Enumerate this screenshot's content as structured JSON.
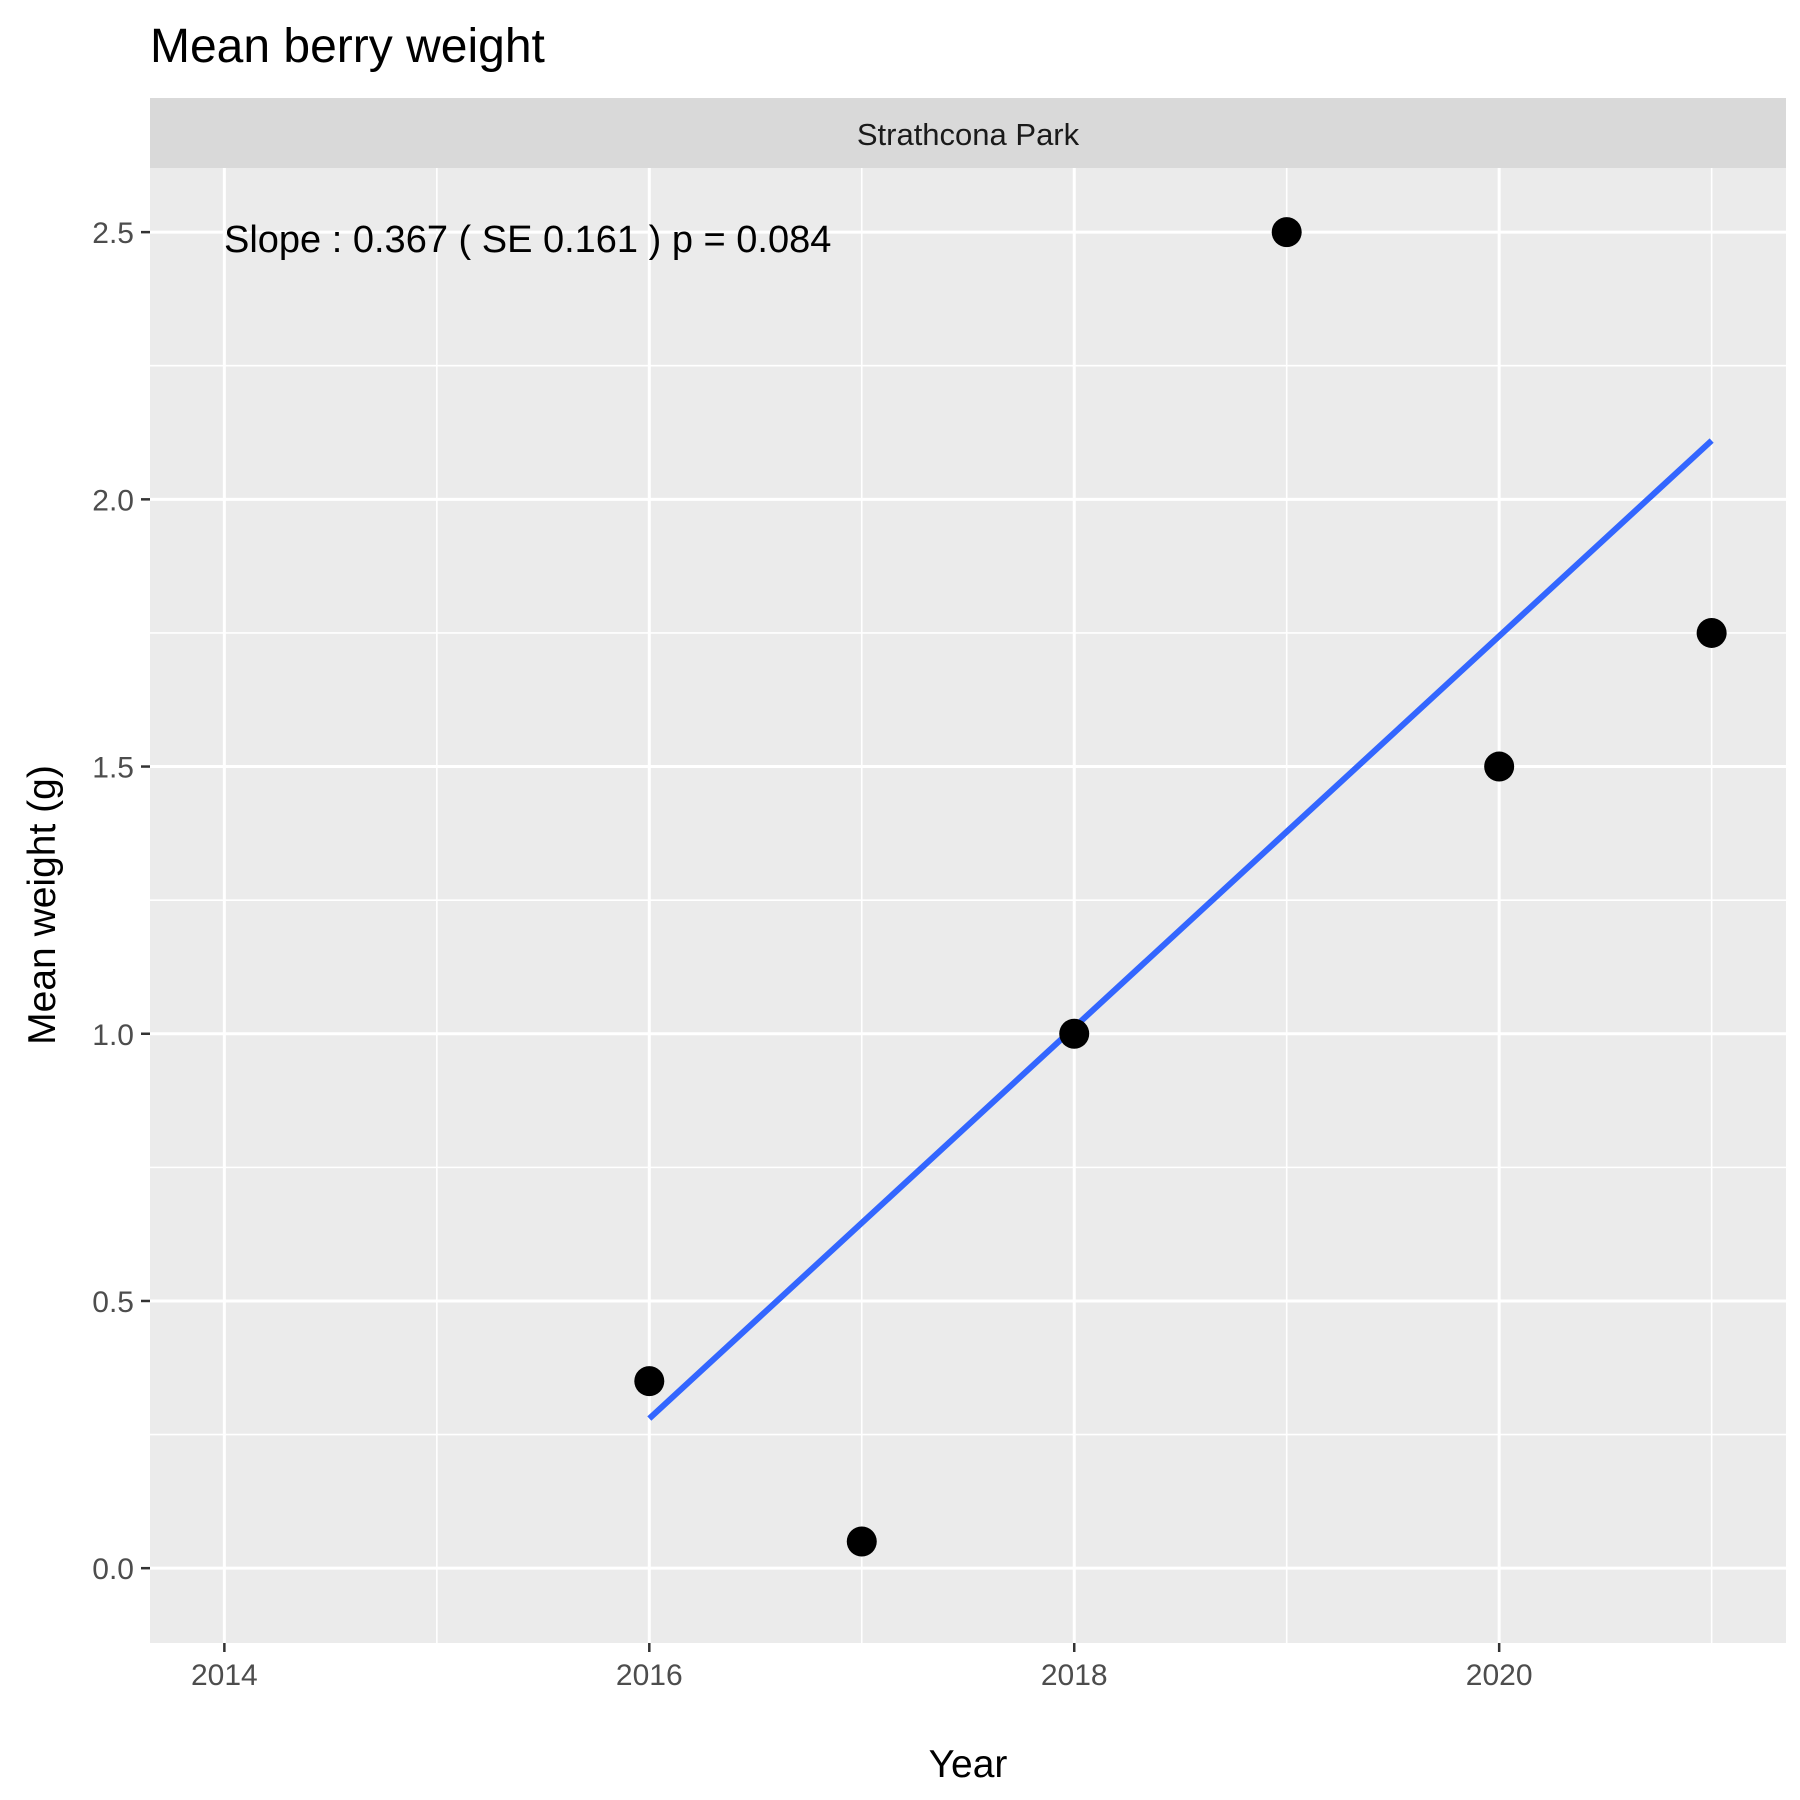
{
  "chart_data": {
    "type": "scatter",
    "title": "Mean berry weight",
    "facet_label": "Strathcona Park",
    "xlabel": "Year",
    "ylabel": "Mean weight (g)",
    "x": [
      2016,
      2017,
      2018,
      2019,
      2020,
      2021
    ],
    "y": [
      0.35,
      0.05,
      1.0,
      2.5,
      1.5,
      1.75
    ],
    "trend_line": {
      "x": [
        2016,
        2021
      ],
      "y": [
        0.28,
        2.11
      ],
      "color": "#3366FF"
    },
    "annotation": "Slope :  0.367  ( SE  0.161 ) p = 0.084",
    "xlim": [
      2013.65,
      2021.35
    ],
    "ylim": [
      -0.14,
      2.62
    ],
    "xticks": [
      2014,
      2016,
      2018,
      2020
    ],
    "xtick_labels": [
      "2014",
      "2016",
      "2018",
      "2020"
    ],
    "yticks": [
      0.0,
      0.5,
      1.0,
      1.5,
      2.0,
      2.5
    ],
    "ytick_labels": [
      "0.0",
      "0.5",
      "1.0",
      "1.5",
      "2.0",
      "2.5"
    ],
    "grid": true,
    "colors": {
      "panel": "#EBEBEB",
      "strip": "#D9D9D9",
      "grid": "#FFFFFF",
      "points": "#000000"
    }
  }
}
